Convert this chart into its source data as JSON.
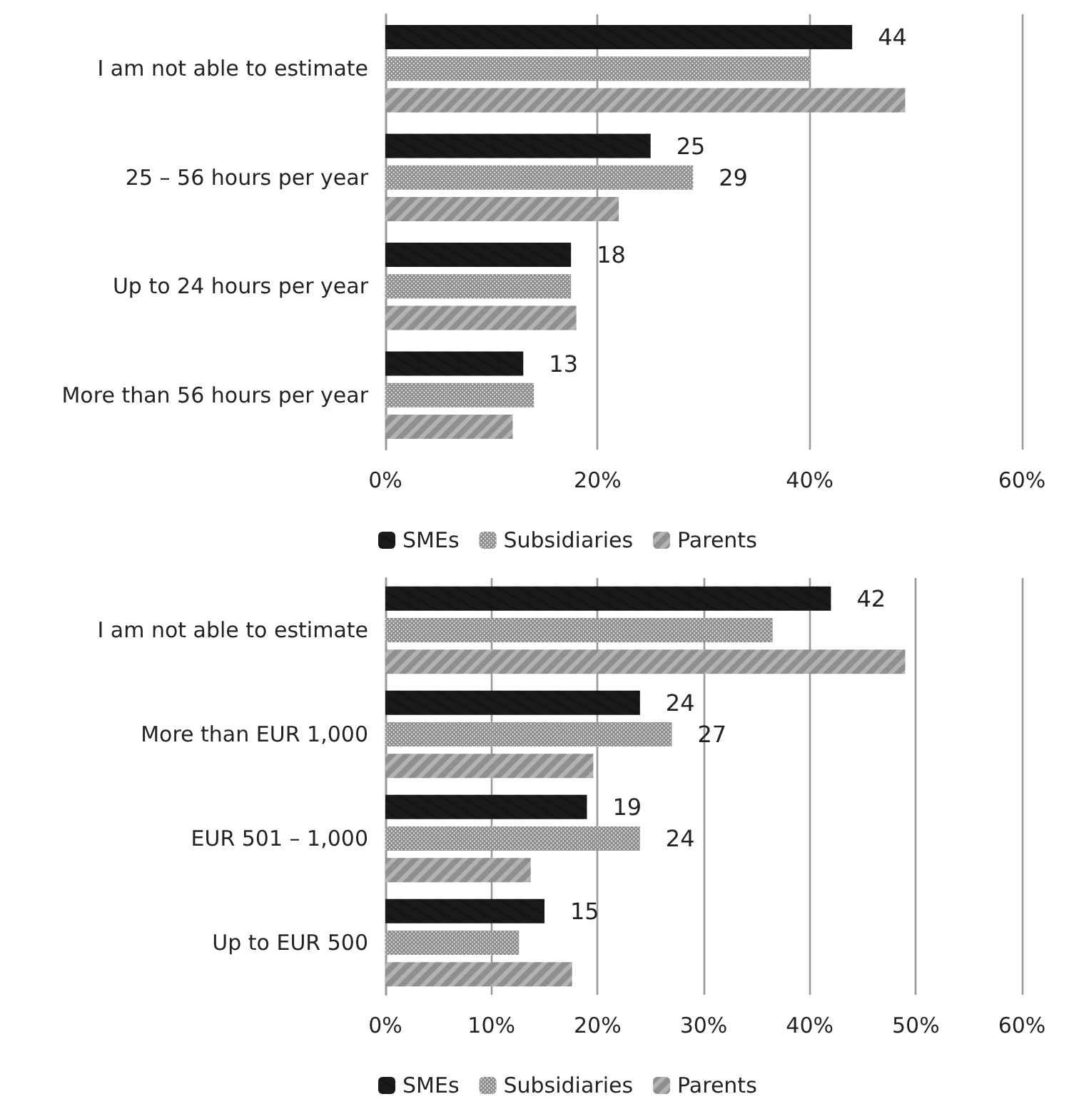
{
  "chart_data": [
    {
      "type": "bar",
      "orientation": "horizontal",
      "categories": [
        "I am not able to estimate",
        "25 – 56 hours per year",
        "Up to 24 hours per year",
        "More than 56 hours per year"
      ],
      "series": [
        {
          "name": "SMEs",
          "color": "#1a1a1a",
          "values": [
            44,
            25,
            17.5,
            13
          ],
          "value_labels": [
            "44",
            "25",
            "18",
            "13"
          ]
        },
        {
          "name": "Subsidiaries",
          "color": "#8c8c8c",
          "values": [
            40,
            29,
            17.5,
            14
          ],
          "value_labels": [
            null,
            "29",
            null,
            null
          ]
        },
        {
          "name": "Parents",
          "color": "#b3b3b3",
          "values": [
            49,
            22,
            18,
            12
          ]
        }
      ],
      "xlim": [
        0,
        60
      ],
      "xticks": [
        {
          "value": 0,
          "label": "0%"
        },
        {
          "value": 20,
          "label": "20%"
        },
        {
          "value": 40,
          "label": "40%"
        },
        {
          "value": 60,
          "label": "60%"
        }
      ],
      "grid": "x",
      "legend": "bottom"
    },
    {
      "type": "bar",
      "orientation": "horizontal",
      "categories": [
        "I am not able to estimate",
        "More than EUR 1,000",
        "EUR 501 – 1,000",
        "Up to EUR 500"
      ],
      "series": [
        {
          "name": "SMEs",
          "color": "#1a1a1a",
          "values": [
            42,
            24,
            19,
            15
          ],
          "value_labels": [
            "42",
            "24",
            "19",
            "15"
          ]
        },
        {
          "name": "Subsidiaries",
          "color": "#8c8c8c",
          "values": [
            36.5,
            27,
            24,
            12.6
          ],
          "value_labels": [
            null,
            "27",
            "24",
            null
          ]
        },
        {
          "name": "Parents",
          "color": "#b3b3b3",
          "values": [
            49,
            19.6,
            13.7,
            17.6
          ]
        }
      ],
      "xlim": [
        0,
        60
      ],
      "xticks": [
        {
          "value": 0,
          "label": "0%"
        },
        {
          "value": 10,
          "label": "10%"
        },
        {
          "value": 20,
          "label": "20%"
        },
        {
          "value": 30,
          "label": "30%"
        },
        {
          "value": 40,
          "label": "40%"
        },
        {
          "value": 50,
          "label": "50%"
        },
        {
          "value": 60,
          "label": "60%"
        }
      ],
      "grid": "x",
      "legend": "bottom"
    }
  ]
}
